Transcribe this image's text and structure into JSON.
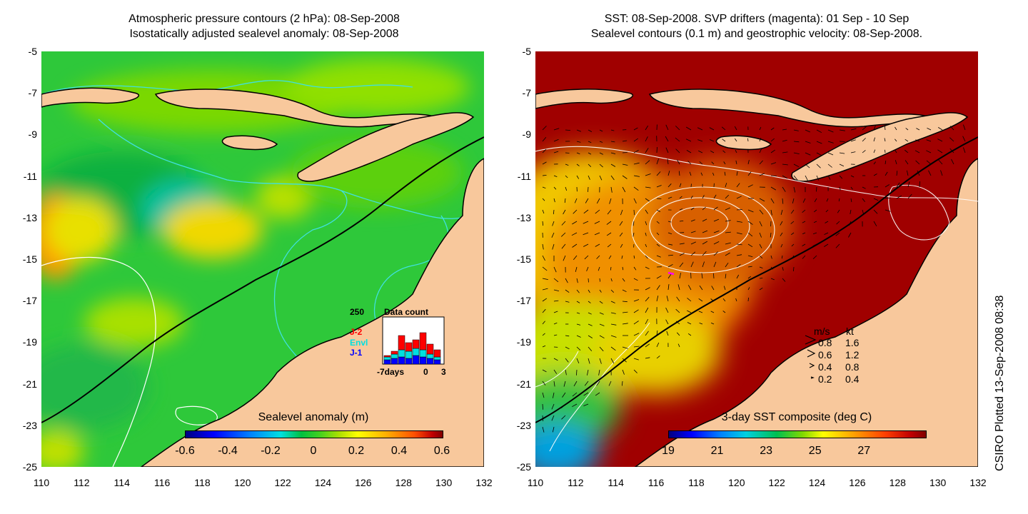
{
  "left_panel": {
    "title_line1": "Atmospheric pressure contours (2 hPa): 08-Sep-2008",
    "title_line2": "Isostatically adjusted sealevel anomaly: 08-Sep-2008",
    "colorbar_title": "Sealevel anomaly (m)",
    "colorbar_labels": [
      "-0.6",
      "-0.4",
      "-0.2",
      "0",
      "0.2",
      "0.4",
      "0.6"
    ],
    "histogram": {
      "max_label": "250",
      "title": "Data count",
      "series": [
        "J-2",
        "Envl",
        "J-1"
      ],
      "series_colors": [
        "#ff0000",
        "#00e0e0",
        "#0000ff"
      ],
      "x_labels": [
        "-7days",
        "0",
        "3"
      ]
    }
  },
  "right_panel": {
    "title_line1": "SST: 08-Sep-2008. SVP drifters (magenta): 01 Sep - 10 Sep",
    "title_line2": "Sealevel contours (0.1 m) and geostrophic velocity: 08-Sep-2008.",
    "colorbar_title": "3-day SST composite (deg C)",
    "colorbar_labels": [
      "19",
      "21",
      "23",
      "25",
      "27"
    ],
    "velocity_legend": {
      "header_ms": "m/s",
      "header_kt": "kt",
      "rows": [
        {
          "ms": "0.8",
          "kt": "1.6"
        },
        {
          "ms": "0.6",
          "kt": "1.2"
        },
        {
          "ms": "0.4",
          "kt": "0.8"
        },
        {
          "ms": "0.2",
          "kt": "0.4"
        }
      ]
    }
  },
  "axes": {
    "y_ticks": [
      "-5",
      "-7",
      "-9",
      "-11",
      "-13",
      "-15",
      "-17",
      "-19",
      "-21",
      "-23",
      "-25"
    ],
    "x_ticks": [
      "110",
      "112",
      "114",
      "116",
      "118",
      "120",
      "122",
      "124",
      "126",
      "128",
      "130",
      "132"
    ]
  },
  "credit": "CSIRO Plotted 13-Sep-2008 08:38",
  "colors": {
    "land": "#f8c89c",
    "ocean_left": "#2ec83a",
    "ocean_right": "#a00000",
    "contour_left": "#40e0e0",
    "contour_right": "#ffffff",
    "coastline": "#000000"
  }
}
